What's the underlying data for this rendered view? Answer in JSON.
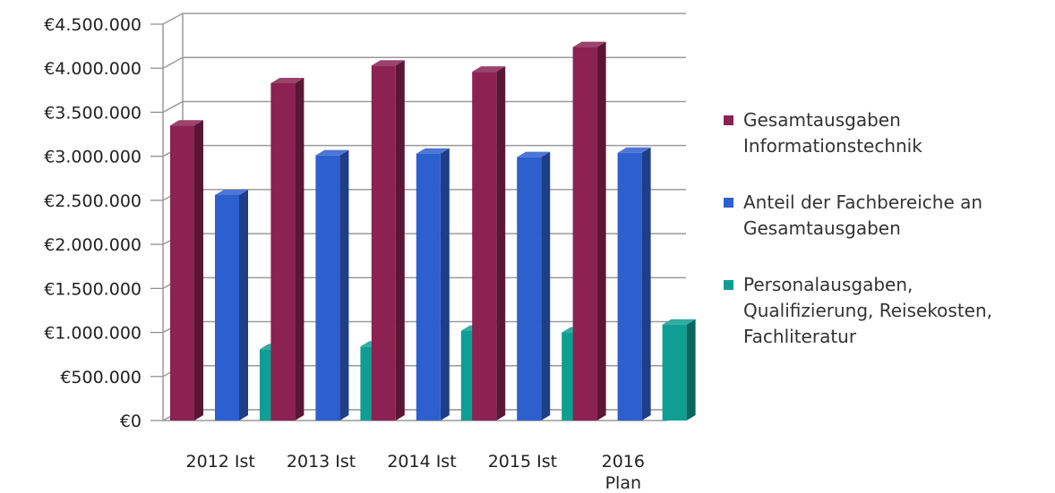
{
  "chart_data": {
    "type": "bar",
    "categories": [
      "2012 Ist",
      "2013 Ist",
      "2014 Ist",
      "2015 Ist",
      "2016\nPlan"
    ],
    "series": [
      {
        "name": "Gesamtausgaben\nInformationstechnik",
        "color": "#8b2252",
        "values": [
          3350000,
          3830000,
          4030000,
          3960000,
          4240000
        ]
      },
      {
        "name": "Anteil der Fachbereiche an\nGesamtausgaben",
        "color": "#2e5fcf",
        "values": [
          2560000,
          3010000,
          3030000,
          2990000,
          3040000
        ]
      },
      {
        "name": "Personalausgaben,\nQualifizierung, Reisekosten,\nFachliteratur",
        "color": "#0f9e94",
        "values": [
          810000,
          840000,
          1020000,
          1000000,
          1090000
        ]
      }
    ],
    "yticks": [
      0,
      500000,
      1000000,
      1500000,
      2000000,
      2500000,
      3000000,
      3500000,
      4000000,
      4500000
    ],
    "ytick_labels": [
      "€0",
      "€500.000",
      "€1.000.000",
      "€1.500.000",
      "€2.000.000",
      "€2.500.000",
      "€3.000.000",
      "€3.500.000",
      "€4.000.000",
      "€4.500.000"
    ],
    "ylim": [
      0,
      4500000
    ],
    "grid": true,
    "legend_position": "right",
    "title": "",
    "xlabel": "",
    "ylabel": ""
  }
}
